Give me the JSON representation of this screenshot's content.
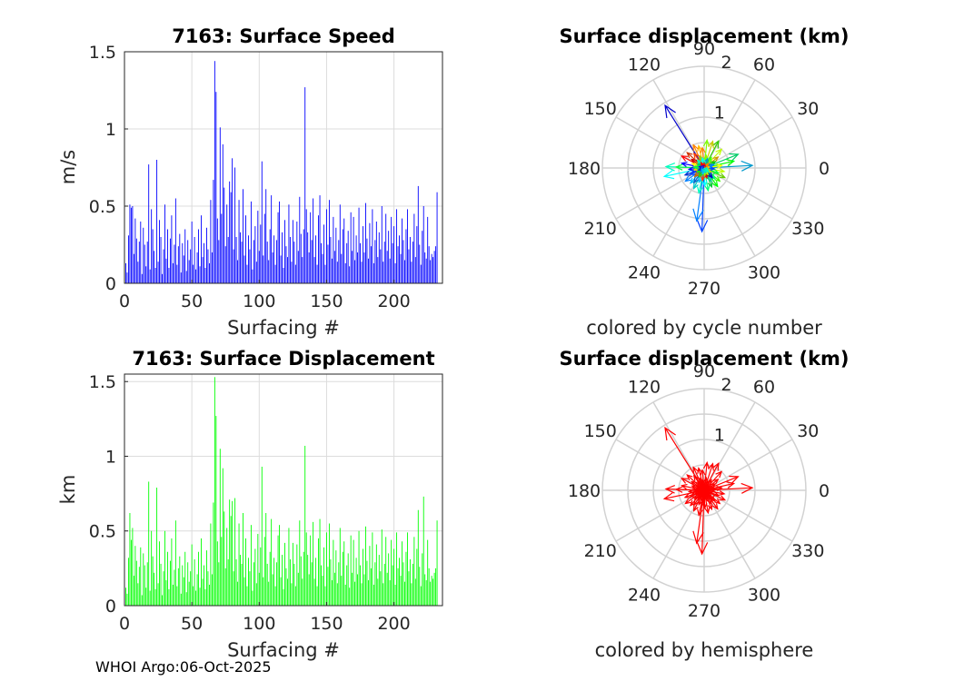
{
  "footer": "WHOI Argo:06-Oct-2025",
  "chart_data": [
    {
      "type": "bar",
      "title": "7163: Surface Speed",
      "xlabel": "Surfacing #",
      "ylabel": "m/s",
      "xlim": [
        0,
        236
      ],
      "ylim": [
        0,
        1.5
      ],
      "xticks": [
        "0",
        "50",
        "100",
        "150",
        "200"
      ],
      "yticks": [
        "0",
        "0.5",
        "1",
        "1.5"
      ],
      "color": "#0000ff",
      "values": [
        0.13,
        0.07,
        0.31,
        0.51,
        0.49,
        0.5,
        0.19,
        0.42,
        0.29,
        0.14,
        0.27,
        0.4,
        0.06,
        0.36,
        0.25,
        0.11,
        0.27,
        0.77,
        0.09,
        0.48,
        0.35,
        0.21,
        0.1,
        0.8,
        0.14,
        0.41,
        0.3,
        0.06,
        0.22,
        0.51,
        0.16,
        0.35,
        0.1,
        0.29,
        0.44,
        0.13,
        0.25,
        0.55,
        0.12,
        0.24,
        0.32,
        0.07,
        0.26,
        0.18,
        0.35,
        0.08,
        0.28,
        0.15,
        0.22,
        0.4,
        0.12,
        0.3,
        0.09,
        0.2,
        0.35,
        0.11,
        0.44,
        0.17,
        0.26,
        0.1,
        0.36,
        0.22,
        0.13,
        0.54,
        0.2,
        0.67,
        1.44,
        1.24,
        0.42,
        0.28,
        1.01,
        0.45,
        0.9,
        0.62,
        0.24,
        0.51,
        0.3,
        0.66,
        0.59,
        0.81,
        0.22,
        0.75,
        0.3,
        0.15,
        0.54,
        0.33,
        0.27,
        0.61,
        0.18,
        0.44,
        0.12,
        0.31,
        0.22,
        0.53,
        0.09,
        0.28,
        0.37,
        0.14,
        0.47,
        0.21,
        0.38,
        0.79,
        0.18,
        0.45,
        0.61,
        0.27,
        0.15,
        0.35,
        0.57,
        0.2,
        0.31,
        0.12,
        0.28,
        0.46,
        0.53,
        0.18,
        0.33,
        0.1,
        0.41,
        0.24,
        0.17,
        0.51,
        0.3,
        0.14,
        0.41,
        0.27,
        0.12,
        0.4,
        0.21,
        0.56,
        0.32,
        0.17,
        0.35,
        1.27,
        0.48,
        0.33,
        0.2,
        0.46,
        0.28,
        0.55,
        0.17,
        0.31,
        0.12,
        0.44,
        0.57,
        0.26,
        0.19,
        0.38,
        0.12,
        0.48,
        0.25,
        0.54,
        0.3,
        0.16,
        0.43,
        0.21,
        0.36,
        0.14,
        0.28,
        0.51,
        0.19,
        0.35,
        0.42,
        0.13,
        0.26,
        0.34,
        0.11,
        0.46,
        0.21,
        0.43,
        0.15,
        0.31,
        0.2,
        0.49,
        0.26,
        0.14,
        0.37,
        0.2,
        0.52,
        0.29,
        0.16,
        0.39,
        0.24,
        0.48,
        0.13,
        0.28,
        0.4,
        0.17,
        0.33,
        0.22,
        0.5,
        0.14,
        0.27,
        0.45,
        0.21,
        0.34,
        0.16,
        0.43,
        0.26,
        0.37,
        0.13,
        0.48,
        0.24,
        0.31,
        0.19,
        0.42,
        0.28,
        0.15,
        0.35,
        0.48,
        0.22,
        0.3,
        0.14,
        0.27,
        0.45,
        0.17,
        0.37,
        0.63,
        0.25,
        0.12,
        0.34,
        0.5,
        0.2,
        0.16,
        0.43,
        0.24,
        0.15,
        0.19,
        0.17,
        0.21,
        0.24,
        0.59
      ]
    },
    {
      "type": "bar",
      "title": "7163: Surface Displacement",
      "xlabel": "Surfacing #",
      "ylabel": "km",
      "xlim": [
        0,
        236
      ],
      "ylim": [
        0,
        1.55
      ],
      "xticks": [
        "0",
        "50",
        "100",
        "150",
        "200"
      ],
      "yticks": [
        "0",
        "0.5",
        "1",
        "1.5"
      ],
      "color": "#00ff00",
      "values": [
        0.12,
        0.08,
        0.32,
        0.62,
        0.44,
        0.52,
        0.2,
        0.4,
        0.3,
        0.15,
        0.26,
        0.39,
        0.07,
        0.35,
        0.27,
        0.12,
        0.29,
        0.83,
        0.1,
        0.5,
        0.33,
        0.22,
        0.11,
        0.79,
        0.15,
        0.43,
        0.28,
        0.07,
        0.23,
        0.5,
        0.17,
        0.36,
        0.11,
        0.3,
        0.45,
        0.14,
        0.24,
        0.57,
        0.13,
        0.25,
        0.33,
        0.08,
        0.27,
        0.19,
        0.36,
        0.09,
        0.29,
        0.16,
        0.23,
        0.41,
        0.13,
        0.31,
        0.1,
        0.21,
        0.36,
        0.12,
        0.45,
        0.18,
        0.27,
        0.11,
        0.37,
        0.23,
        0.14,
        0.55,
        0.21,
        0.69,
        1.53,
        1.27,
        0.43,
        0.29,
        1.05,
        0.46,
        0.92,
        0.63,
        0.25,
        0.52,
        0.31,
        0.71,
        0.6,
        0.7,
        0.23,
        0.72,
        0.31,
        0.16,
        0.55,
        0.34,
        0.28,
        0.62,
        0.19,
        0.45,
        0.13,
        0.32,
        0.23,
        0.54,
        0.1,
        0.29,
        0.38,
        0.15,
        0.48,
        0.22,
        0.39,
        0.93,
        0.19,
        0.46,
        0.62,
        0.28,
        0.16,
        0.36,
        0.58,
        0.21,
        0.32,
        0.13,
        0.29,
        0.47,
        0.54,
        0.19,
        0.34,
        0.11,
        0.42,
        0.25,
        0.18,
        0.52,
        0.31,
        0.15,
        0.42,
        0.28,
        0.13,
        0.41,
        0.22,
        0.57,
        0.33,
        0.18,
        0.36,
        1.07,
        0.49,
        0.34,
        0.21,
        0.47,
        0.29,
        0.56,
        0.18,
        0.32,
        0.13,
        0.45,
        0.58,
        0.27,
        0.2,
        0.39,
        0.13,
        0.49,
        0.26,
        0.55,
        0.31,
        0.17,
        0.44,
        0.22,
        0.37,
        0.15,
        0.29,
        0.52,
        0.2,
        0.36,
        0.43,
        0.14,
        0.27,
        0.35,
        0.12,
        0.47,
        0.22,
        0.44,
        0.16,
        0.32,
        0.21,
        0.5,
        0.27,
        0.15,
        0.38,
        0.21,
        0.53,
        0.3,
        0.17,
        0.4,
        0.25,
        0.49,
        0.14,
        0.29,
        0.41,
        0.18,
        0.34,
        0.23,
        0.51,
        0.15,
        0.28,
        0.46,
        0.22,
        0.35,
        0.17,
        0.44,
        0.27,
        0.38,
        0.14,
        0.49,
        0.25,
        0.32,
        0.2,
        0.43,
        0.29,
        0.16,
        0.36,
        0.49,
        0.23,
        0.31,
        0.15,
        0.28,
        0.46,
        0.18,
        0.38,
        0.64,
        0.26,
        0.13,
        0.35,
        0.73,
        0.21,
        0.17,
        0.44,
        0.25,
        0.16,
        0.2,
        0.18,
        0.22,
        0.25,
        0.57
      ]
    },
    {
      "type": "polar-compass",
      "title": "Surface displacement (km)",
      "caption": "colored by cycle number",
      "rmax": 2,
      "rticks": [
        "1",
        "2"
      ],
      "angle_labels": [
        "0",
        "30",
        "60",
        "90",
        "120",
        "150",
        "180",
        "210",
        "240",
        "270",
        "300",
        "330"
      ],
      "color_mode": "cycle",
      "vectors": [
        [
          1.45,
          122
        ],
        [
          1.25,
          268
        ],
        [
          1.05,
          262
        ],
        [
          0.95,
          3
        ],
        [
          0.8,
          192
        ],
        [
          0.75,
          178
        ],
        [
          0.72,
          22
        ],
        [
          0.55,
          178
        ],
        [
          0.6,
          13
        ],
        [
          0.6,
          62
        ],
        [
          0.55,
          84
        ],
        [
          0.5,
          47
        ],
        [
          0.55,
          72
        ],
        [
          0.45,
          104
        ],
        [
          0.5,
          115
        ],
        [
          0.45,
          138
        ],
        [
          0.5,
          152
        ],
        [
          0.45,
          168
        ],
        [
          0.4,
          200
        ],
        [
          0.45,
          215
        ],
        [
          0.4,
          228
        ],
        [
          0.45,
          243
        ],
        [
          0.5,
          258
        ],
        [
          0.45,
          280
        ],
        [
          0.4,
          292
        ],
        [
          0.45,
          306
        ],
        [
          0.4,
          320
        ],
        [
          0.45,
          335
        ],
        [
          0.4,
          350
        ],
        [
          0.35,
          8
        ],
        [
          0.35,
          38
        ],
        [
          0.4,
          95
        ],
        [
          0.35,
          125
        ],
        [
          0.3,
          145
        ],
        [
          0.3,
          185
        ],
        [
          0.3,
          205
        ],
        [
          0.35,
          235
        ],
        [
          0.3,
          250
        ],
        [
          0.35,
          272
        ],
        [
          0.3,
          298
        ],
        [
          0.3,
          315
        ],
        [
          0.3,
          340
        ],
        [
          0.25,
          30
        ],
        [
          0.25,
          55
        ],
        [
          0.25,
          80
        ],
        [
          0.25,
          110
        ],
        [
          0.25,
          160
        ],
        [
          0.2,
          190
        ],
        [
          0.25,
          222
        ],
        [
          0.25,
          262
        ],
        [
          0.2,
          285
        ],
        [
          0.25,
          310
        ],
        [
          0.2,
          355
        ],
        [
          0.2,
          20
        ],
        [
          0.2,
          70
        ],
        [
          0.2,
          100
        ],
        [
          0.2,
          130
        ],
        [
          0.15,
          150
        ],
        [
          0.2,
          175
        ],
        [
          0.15,
          210
        ],
        [
          0.2,
          240
        ],
        [
          0.15,
          275
        ],
        [
          0.15,
          300
        ],
        [
          0.15,
          330
        ],
        [
          0.1,
          15
        ],
        [
          0.12,
          45
        ],
        [
          0.1,
          90
        ],
        [
          0.12,
          120
        ],
        [
          0.1,
          165
        ],
        [
          0.12,
          200
        ],
        [
          0.1,
          230
        ],
        [
          0.12,
          260
        ],
        [
          0.1,
          290
        ],
        [
          0.12,
          320
        ]
      ]
    },
    {
      "type": "polar-compass",
      "title": "Surface displacement (km)",
      "caption": "colored by hemisphere",
      "rmax": 2,
      "rticks": [
        "1",
        "2"
      ],
      "angle_labels": [
        "0",
        "30",
        "60",
        "90",
        "120",
        "150",
        "180",
        "210",
        "240",
        "270",
        "300",
        "330"
      ],
      "color_mode": "single",
      "color": "#ff0000",
      "vectors": [
        [
          1.45,
          122
        ],
        [
          1.25,
          268
        ],
        [
          1.05,
          262
        ],
        [
          0.95,
          3
        ],
        [
          0.8,
          192
        ],
        [
          0.75,
          178
        ],
        [
          0.72,
          22
        ],
        [
          0.55,
          178
        ],
        [
          0.6,
          13
        ],
        [
          0.6,
          62
        ],
        [
          0.55,
          84
        ],
        [
          0.5,
          47
        ],
        [
          0.55,
          72
        ],
        [
          0.45,
          104
        ],
        [
          0.5,
          115
        ],
        [
          0.45,
          138
        ],
        [
          0.5,
          152
        ],
        [
          0.45,
          168
        ],
        [
          0.4,
          200
        ],
        [
          0.45,
          215
        ],
        [
          0.4,
          228
        ],
        [
          0.45,
          243
        ],
        [
          0.5,
          258
        ],
        [
          0.45,
          280
        ],
        [
          0.4,
          292
        ],
        [
          0.45,
          306
        ],
        [
          0.4,
          320
        ],
        [
          0.45,
          335
        ],
        [
          0.4,
          350
        ],
        [
          0.35,
          8
        ],
        [
          0.35,
          38
        ],
        [
          0.4,
          95
        ],
        [
          0.35,
          125
        ],
        [
          0.3,
          145
        ],
        [
          0.3,
          185
        ],
        [
          0.3,
          205
        ],
        [
          0.35,
          235
        ],
        [
          0.3,
          250
        ],
        [
          0.35,
          272
        ],
        [
          0.3,
          298
        ],
        [
          0.3,
          315
        ],
        [
          0.3,
          340
        ],
        [
          0.25,
          30
        ],
        [
          0.25,
          55
        ],
        [
          0.25,
          80
        ],
        [
          0.25,
          110
        ],
        [
          0.25,
          160
        ],
        [
          0.2,
          190
        ],
        [
          0.25,
          222
        ],
        [
          0.25,
          262
        ],
        [
          0.2,
          285
        ],
        [
          0.25,
          310
        ],
        [
          0.2,
          355
        ],
        [
          0.2,
          20
        ],
        [
          0.2,
          70
        ],
        [
          0.2,
          100
        ],
        [
          0.2,
          130
        ],
        [
          0.15,
          150
        ],
        [
          0.2,
          175
        ],
        [
          0.15,
          210
        ],
        [
          0.2,
          240
        ],
        [
          0.15,
          275
        ],
        [
          0.15,
          300
        ],
        [
          0.15,
          330
        ],
        [
          0.1,
          15
        ],
        [
          0.12,
          45
        ],
        [
          0.1,
          90
        ],
        [
          0.12,
          120
        ],
        [
          0.1,
          165
        ],
        [
          0.12,
          200
        ],
        [
          0.1,
          230
        ],
        [
          0.12,
          260
        ],
        [
          0.1,
          290
        ],
        [
          0.12,
          320
        ]
      ]
    }
  ]
}
